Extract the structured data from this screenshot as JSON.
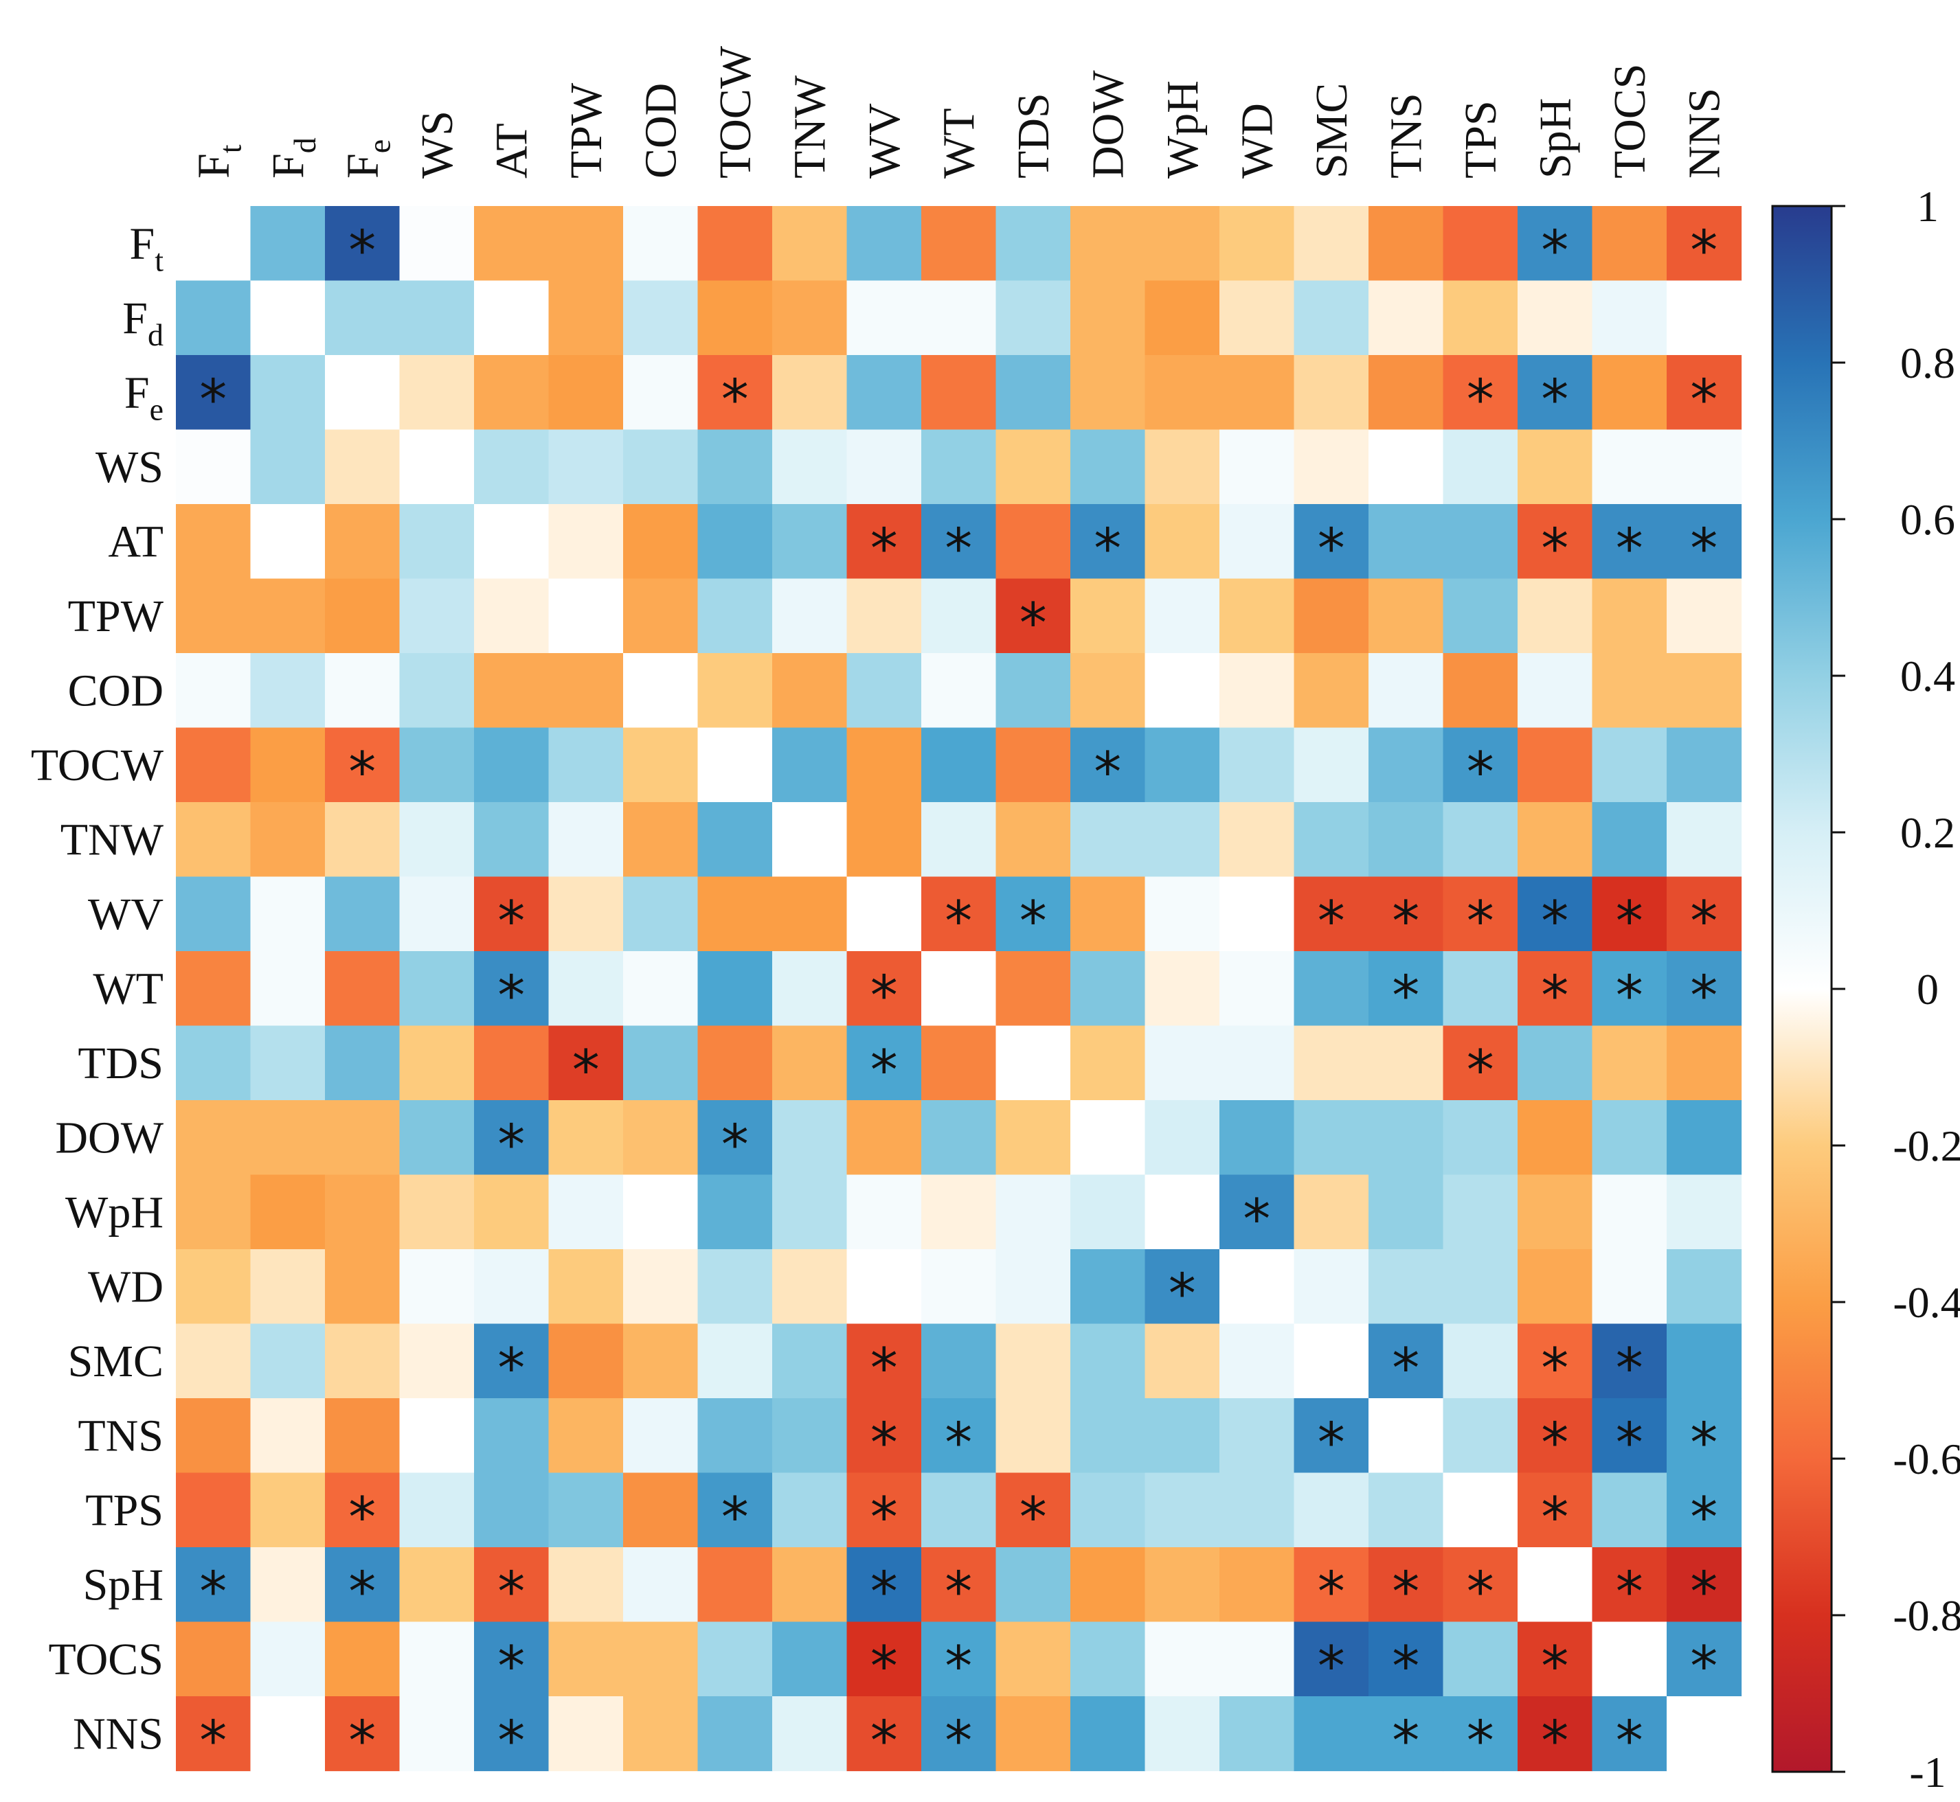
{
  "chart_data": {
    "type": "heatmap",
    "labels": [
      "Ft",
      "Fd",
      "Fe",
      "WS",
      "AT",
      "TPW",
      "COD",
      "TOCW",
      "TNW",
      "WV",
      "WT",
      "TDS",
      "DOW",
      "WpH",
      "WD",
      "SMC",
      "TNS",
      "TPS",
      "SpH",
      "TOCS",
      "NNS"
    ],
    "label_display": [
      {
        "base": "F",
        "sub": "t"
      },
      {
        "base": "F",
        "sub": "d"
      },
      {
        "base": "F",
        "sub": "e"
      },
      {
        "base": "WS"
      },
      {
        "base": "AT"
      },
      {
        "base": "TPW"
      },
      {
        "base": "COD"
      },
      {
        "base": "TOCW"
      },
      {
        "base": "TNW"
      },
      {
        "base": "WV"
      },
      {
        "base": "WT"
      },
      {
        "base": "TDS"
      },
      {
        "base": "DOW"
      },
      {
        "base": "WpH"
      },
      {
        "base": "WD"
      },
      {
        "base": "SMC"
      },
      {
        "base": "TNS"
      },
      {
        "base": "TPS"
      },
      {
        "base": "SpH"
      },
      {
        "base": "TOCS"
      },
      {
        "base": "NNS"
      }
    ],
    "values": [
      [
        0,
        0.5,
        0.9,
        0.02,
        -0.35,
        -0.35,
        0.05,
        -0.55,
        -0.25,
        0.5,
        -0.5,
        0.4,
        -0.3,
        -0.3,
        -0.2,
        -0.1,
        -0.45,
        -0.6,
        0.7,
        -0.45,
        -0.65
      ],
      [
        0.5,
        0,
        0.35,
        0.35,
        0,
        -0.35,
        0.25,
        -0.4,
        -0.35,
        0.05,
        0.05,
        0.3,
        -0.3,
        -0.4,
        -0.1,
        0.3,
        -0.05,
        -0.2,
        -0.05,
        0.1,
        0
      ],
      [
        0.9,
        0.35,
        0,
        -0.1,
        -0.35,
        -0.4,
        0.05,
        -0.6,
        -0.15,
        0.5,
        -0.55,
        0.5,
        -0.3,
        -0.35,
        -0.35,
        -0.15,
        -0.45,
        -0.6,
        0.7,
        -0.4,
        -0.65
      ],
      [
        0.02,
        0.35,
        -0.1,
        0,
        0.3,
        0.25,
        0.3,
        0.45,
        0.15,
        0.1,
        0.4,
        -0.2,
        0.45,
        -0.15,
        0.05,
        -0.05,
        0,
        0.2,
        -0.2,
        0.05,
        0.05
      ],
      [
        -0.35,
        0,
        -0.35,
        0.3,
        0,
        -0.05,
        -0.4,
        0.55,
        0.45,
        -0.7,
        0.7,
        -0.55,
        0.7,
        -0.2,
        0.1,
        0.7,
        0.5,
        0.5,
        -0.65,
        0.7,
        0.7
      ],
      [
        -0.35,
        -0.35,
        -0.4,
        0.25,
        -0.05,
        0,
        -0.35,
        0.35,
        0.1,
        -0.1,
        0.15,
        -0.75,
        -0.2,
        0.1,
        -0.2,
        -0.45,
        -0.3,
        0.45,
        -0.1,
        -0.25,
        -0.05
      ],
      [
        0.05,
        0.25,
        0.05,
        0.3,
        -0.35,
        -0.35,
        0,
        -0.2,
        -0.35,
        0.35,
        0.05,
        0.45,
        -0.25,
        0,
        -0.05,
        -0.3,
        0.1,
        -0.45,
        0.1,
        -0.25,
        -0.25
      ],
      [
        -0.55,
        -0.4,
        -0.6,
        0.45,
        0.55,
        0.35,
        -0.2,
        0,
        0.55,
        -0.4,
        0.6,
        -0.5,
        0.65,
        0.55,
        0.3,
        0.15,
        0.5,
        0.65,
        -0.55,
        0.35,
        0.5
      ],
      [
        -0.25,
        -0.35,
        -0.15,
        0.15,
        0.45,
        0.1,
        -0.35,
        0.55,
        0,
        -0.4,
        0.15,
        -0.3,
        0.3,
        0.3,
        -0.1,
        0.4,
        0.45,
        0.35,
        -0.3,
        0.55,
        0.15
      ],
      [
        0.5,
        0.05,
        0.5,
        0.1,
        -0.7,
        -0.1,
        0.35,
        -0.4,
        -0.4,
        0,
        -0.65,
        0.6,
        -0.35,
        0.05,
        0,
        -0.7,
        -0.7,
        -0.65,
        0.8,
        -0.8,
        -0.7
      ],
      [
        -0.5,
        0.05,
        -0.55,
        0.4,
        0.7,
        0.15,
        0.05,
        0.6,
        0.15,
        -0.65,
        0,
        -0.5,
        0.45,
        -0.05,
        0.05,
        0.55,
        0.6,
        0.35,
        -0.65,
        0.6,
        0.65
      ],
      [
        0.4,
        0.3,
        0.5,
        -0.2,
        -0.55,
        -0.75,
        0.45,
        -0.5,
        -0.3,
        0.6,
        -0.5,
        0,
        -0.2,
        0.1,
        0.1,
        -0.1,
        -0.1,
        -0.65,
        0.45,
        -0.25,
        -0.35
      ],
      [
        -0.3,
        -0.3,
        -0.3,
        0.45,
        0.7,
        -0.2,
        -0.25,
        0.65,
        0.3,
        -0.35,
        0.45,
        -0.2,
        0,
        0.2,
        0.55,
        0.4,
        0.4,
        0.35,
        -0.4,
        0.4,
        0.6
      ],
      [
        -0.3,
        -0.4,
        -0.35,
        -0.15,
        -0.2,
        0.1,
        0,
        0.55,
        0.3,
        0.05,
        -0.05,
        0.1,
        0.2,
        0,
        0.7,
        -0.15,
        0.4,
        0.3,
        -0.3,
        0.05,
        0.15
      ],
      [
        -0.2,
        -0.1,
        -0.35,
        0.05,
        0.1,
        -0.2,
        -0.05,
        0.3,
        -0.1,
        0,
        0.05,
        0.1,
        0.55,
        0.7,
        0,
        0.1,
        0.3,
        0.3,
        -0.35,
        0.05,
        0.4
      ],
      [
        -0.1,
        0.3,
        -0.15,
        -0.05,
        0.7,
        -0.45,
        -0.3,
        0.15,
        0.4,
        -0.7,
        0.55,
        -0.1,
        0.4,
        -0.15,
        0.1,
        0,
        0.7,
        0.2,
        -0.6,
        0.85,
        0.6
      ],
      [
        -0.45,
        -0.05,
        -0.45,
        0,
        0.5,
        -0.3,
        0.1,
        0.5,
        0.45,
        -0.7,
        0.6,
        -0.1,
        0.4,
        0.4,
        0.3,
        0.7,
        0,
        0.3,
        -0.7,
        0.8,
        0.6
      ],
      [
        -0.6,
        -0.2,
        -0.6,
        0.2,
        0.5,
        0.45,
        -0.45,
        0.65,
        0.35,
        -0.65,
        0.35,
        -0.65,
        0.35,
        0.3,
        0.3,
        0.2,
        0.3,
        0,
        -0.65,
        0.4,
        0.6
      ],
      [
        0.7,
        -0.05,
        0.7,
        -0.2,
        -0.65,
        -0.1,
        0.1,
        -0.55,
        -0.3,
        0.8,
        -0.65,
        0.45,
        -0.4,
        -0.3,
        -0.35,
        -0.6,
        -0.7,
        -0.65,
        0,
        -0.75,
        -0.85
      ],
      [
        -0.45,
        0.1,
        -0.4,
        0.05,
        0.7,
        -0.25,
        -0.25,
        0.35,
        0.55,
        -0.8,
        0.6,
        -0.25,
        0.4,
        0.05,
        0.05,
        0.85,
        0.8,
        0.4,
        -0.75,
        0,
        0.65
      ],
      [
        -0.65,
        0,
        -0.65,
        0.05,
        0.7,
        -0.05,
        -0.25,
        0.5,
        0.15,
        -0.7,
        0.65,
        -0.35,
        0.6,
        0.15,
        0.4,
        0.6,
        0.6,
        0.6,
        -0.85,
        0.65,
        0
      ]
    ],
    "significant": [
      [
        0,
        2
      ],
      [
        0,
        18
      ],
      [
        0,
        20
      ],
      [
        2,
        0
      ],
      [
        2,
        7
      ],
      [
        2,
        17
      ],
      [
        2,
        18
      ],
      [
        2,
        20
      ],
      [
        4,
        9
      ],
      [
        4,
        10
      ],
      [
        4,
        12
      ],
      [
        4,
        15
      ],
      [
        4,
        18
      ],
      [
        4,
        19
      ],
      [
        4,
        20
      ],
      [
        5,
        11
      ],
      [
        7,
        2
      ],
      [
        7,
        12
      ],
      [
        7,
        17
      ],
      [
        9,
        4
      ],
      [
        9,
        10
      ],
      [
        9,
        11
      ],
      [
        9,
        15
      ],
      [
        9,
        16
      ],
      [
        9,
        17
      ],
      [
        9,
        18
      ],
      [
        9,
        19
      ],
      [
        9,
        20
      ],
      [
        10,
        4
      ],
      [
        10,
        9
      ],
      [
        10,
        16
      ],
      [
        10,
        18
      ],
      [
        10,
        19
      ],
      [
        10,
        20
      ],
      [
        11,
        5
      ],
      [
        11,
        9
      ],
      [
        11,
        17
      ],
      [
        12,
        4
      ],
      [
        12,
        7
      ],
      [
        13,
        14
      ],
      [
        14,
        13
      ],
      [
        15,
        4
      ],
      [
        15,
        9
      ],
      [
        15,
        16
      ],
      [
        15,
        18
      ],
      [
        15,
        19
      ],
      [
        16,
        9
      ],
      [
        16,
        10
      ],
      [
        16,
        15
      ],
      [
        16,
        18
      ],
      [
        16,
        19
      ],
      [
        16,
        20
      ],
      [
        17,
        2
      ],
      [
        17,
        7
      ],
      [
        17,
        9
      ],
      [
        17,
        11
      ],
      [
        17,
        18
      ],
      [
        17,
        20
      ],
      [
        18,
        0
      ],
      [
        18,
        2
      ],
      [
        18,
        4
      ],
      [
        18,
        9
      ],
      [
        18,
        10
      ],
      [
        18,
        15
      ],
      [
        18,
        16
      ],
      [
        18,
        17
      ],
      [
        18,
        19
      ],
      [
        18,
        20
      ],
      [
        19,
        4
      ],
      [
        19,
        9
      ],
      [
        19,
        10
      ],
      [
        19,
        15
      ],
      [
        19,
        16
      ],
      [
        19,
        18
      ],
      [
        19,
        20
      ],
      [
        20,
        0
      ],
      [
        20,
        2
      ],
      [
        20,
        4
      ],
      [
        20,
        9
      ],
      [
        20,
        10
      ],
      [
        20,
        16
      ],
      [
        20,
        17
      ],
      [
        20,
        18
      ],
      [
        20,
        19
      ]
    ],
    "marker_symbol": "*",
    "colorbar": {
      "range": [
        -1,
        1
      ],
      "ticks": [
        1,
        0.8,
        0.6,
        0.4,
        0.2,
        0,
        -0.2,
        -0.4,
        -0.6,
        -0.8,
        -1
      ],
      "tick_labels": [
        "1",
        "0.8",
        "0.6",
        "0.4",
        "0.2",
        "0",
        "-0.2",
        "-0.4",
        "-0.6",
        "-0.8",
        "-1"
      ],
      "position": "right"
    },
    "colors": {
      "neg_1": "#b2182b",
      "neg_08": "#d7301f",
      "neg_06": "#f4693a",
      "neg_04": "#fb9e45",
      "neg_02": "#fdcb7d",
      "zero": "#ffffff",
      "pos_02": "#d6eff6",
      "pos_04": "#92d0e4",
      "pos_06": "#4ba6d1",
      "pos_08": "#2873b6",
      "pos_1": "#283c8e"
    },
    "title": "",
    "xlabel": "",
    "ylabel": ""
  }
}
